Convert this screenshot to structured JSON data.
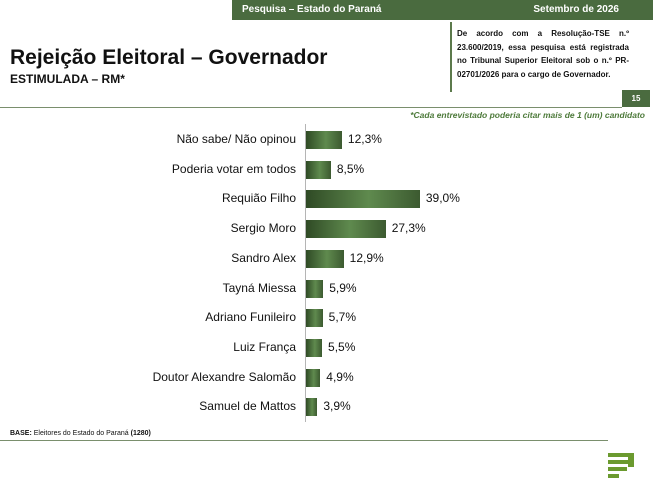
{
  "header": {
    "left": "Pesquisa – Estado do Paraná",
    "right": "Setembro de 2026"
  },
  "title": "Rejeição Eleitoral – Governador",
  "subtitle": "ESTIMULADA – RM*",
  "registration_text": "De acordo com a Resolução-TSE n.º 23.600/2019, essa pesquisa está registrada no Tribunal Superior Eleitoral sob o n.º PR-02701/2026 para o cargo de Governador.",
  "page_number": "15",
  "note": "*Cada entrevistado poderia citar mais de 1 (um) candidato",
  "base": {
    "label": "BASE:",
    "text": "Eleitores do Estado do Paraná",
    "count": "(1280)"
  },
  "colors": {
    "brand_green": "#4a6b3f",
    "bar_dark": "#2f4a25",
    "bar_light": "#5f8a4e",
    "note_green": "#4d7a3a"
  },
  "chart_data": {
    "type": "bar",
    "orientation": "horizontal",
    "categories": [
      "Não sabe/ Não opinou",
      "Poderia votar em todos",
      "Requião Filho",
      "Sergio Moro",
      "Sandro Alex",
      "Tayná Miessa",
      "Adriano Funileiro",
      "Luiz França",
      "Doutor Alexandre Salomão",
      "Samuel de Mattos"
    ],
    "values": [
      12.3,
      8.5,
      39.0,
      27.3,
      12.9,
      5.9,
      5.7,
      5.5,
      4.9,
      3.9
    ],
    "labels": [
      "12,3%",
      "8,5%",
      "39,0%",
      "27,3%",
      "12,9%",
      "5,9%",
      "5,7%",
      "5,5%",
      "4,9%",
      "3,9%"
    ],
    "unit": "%",
    "grid": false,
    "legend": "none"
  }
}
